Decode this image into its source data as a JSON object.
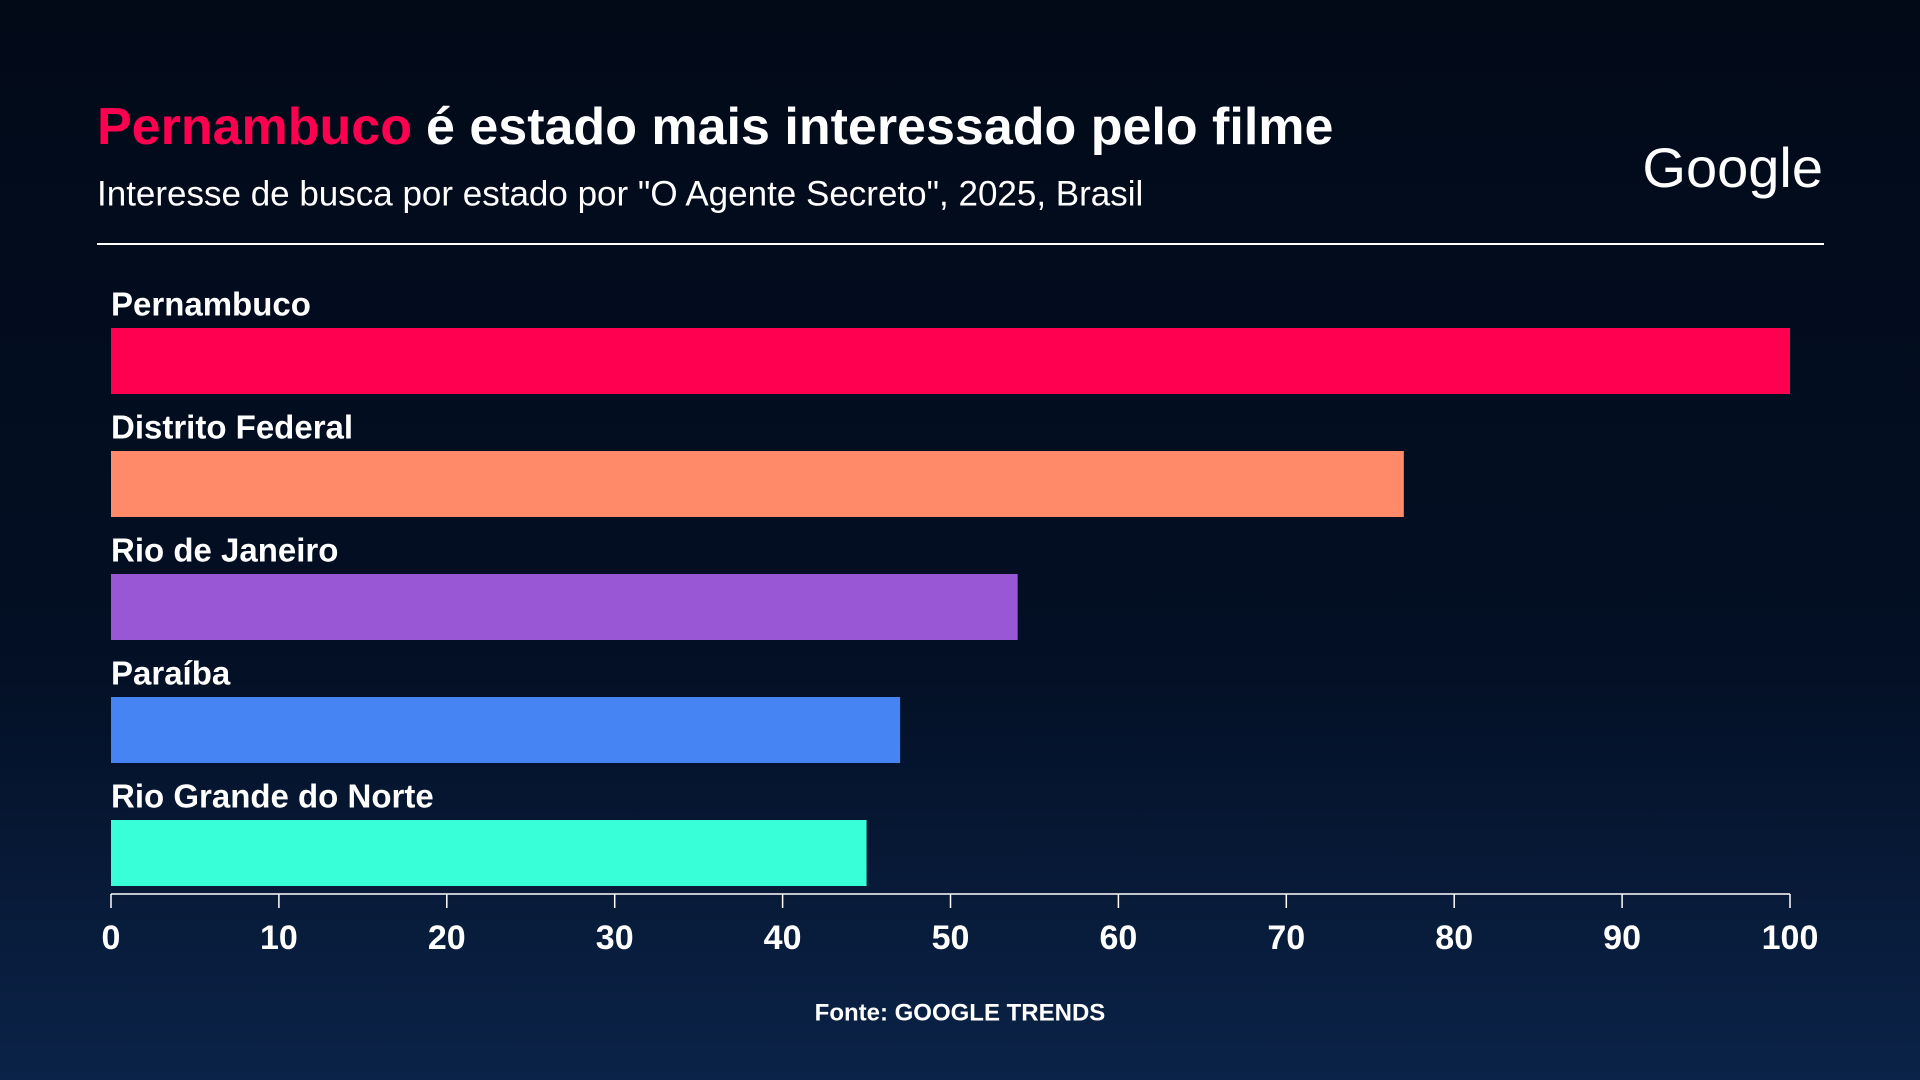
{
  "chart_data": {
    "type": "bar",
    "orientation": "horizontal",
    "title_highlight": "Pernambuco",
    "title_highlight_color": "#ff0050",
    "title": "é estado mais interessado pelo filme",
    "subtitle": "Interesse de busca por estado por \"O Agente Secreto\", 2025, Brasil",
    "logo": "Google",
    "categories": [
      "Pernambuco",
      "Distrito Federal",
      "Rio de Janeiro",
      "Paraíba",
      "Rio Grande do Norte"
    ],
    "values": [
      100,
      77,
      54,
      47,
      45
    ],
    "colors": [
      "#ff0050",
      "#ff8a6a",
      "#9957d6",
      "#4684f4",
      "#38ffd8"
    ],
    "xlim": [
      0,
      100
    ],
    "xticks": [
      0,
      10,
      20,
      30,
      40,
      50,
      60,
      70,
      80,
      90,
      100
    ],
    "source": "Fonte: GOOGLE TRENDS"
  }
}
